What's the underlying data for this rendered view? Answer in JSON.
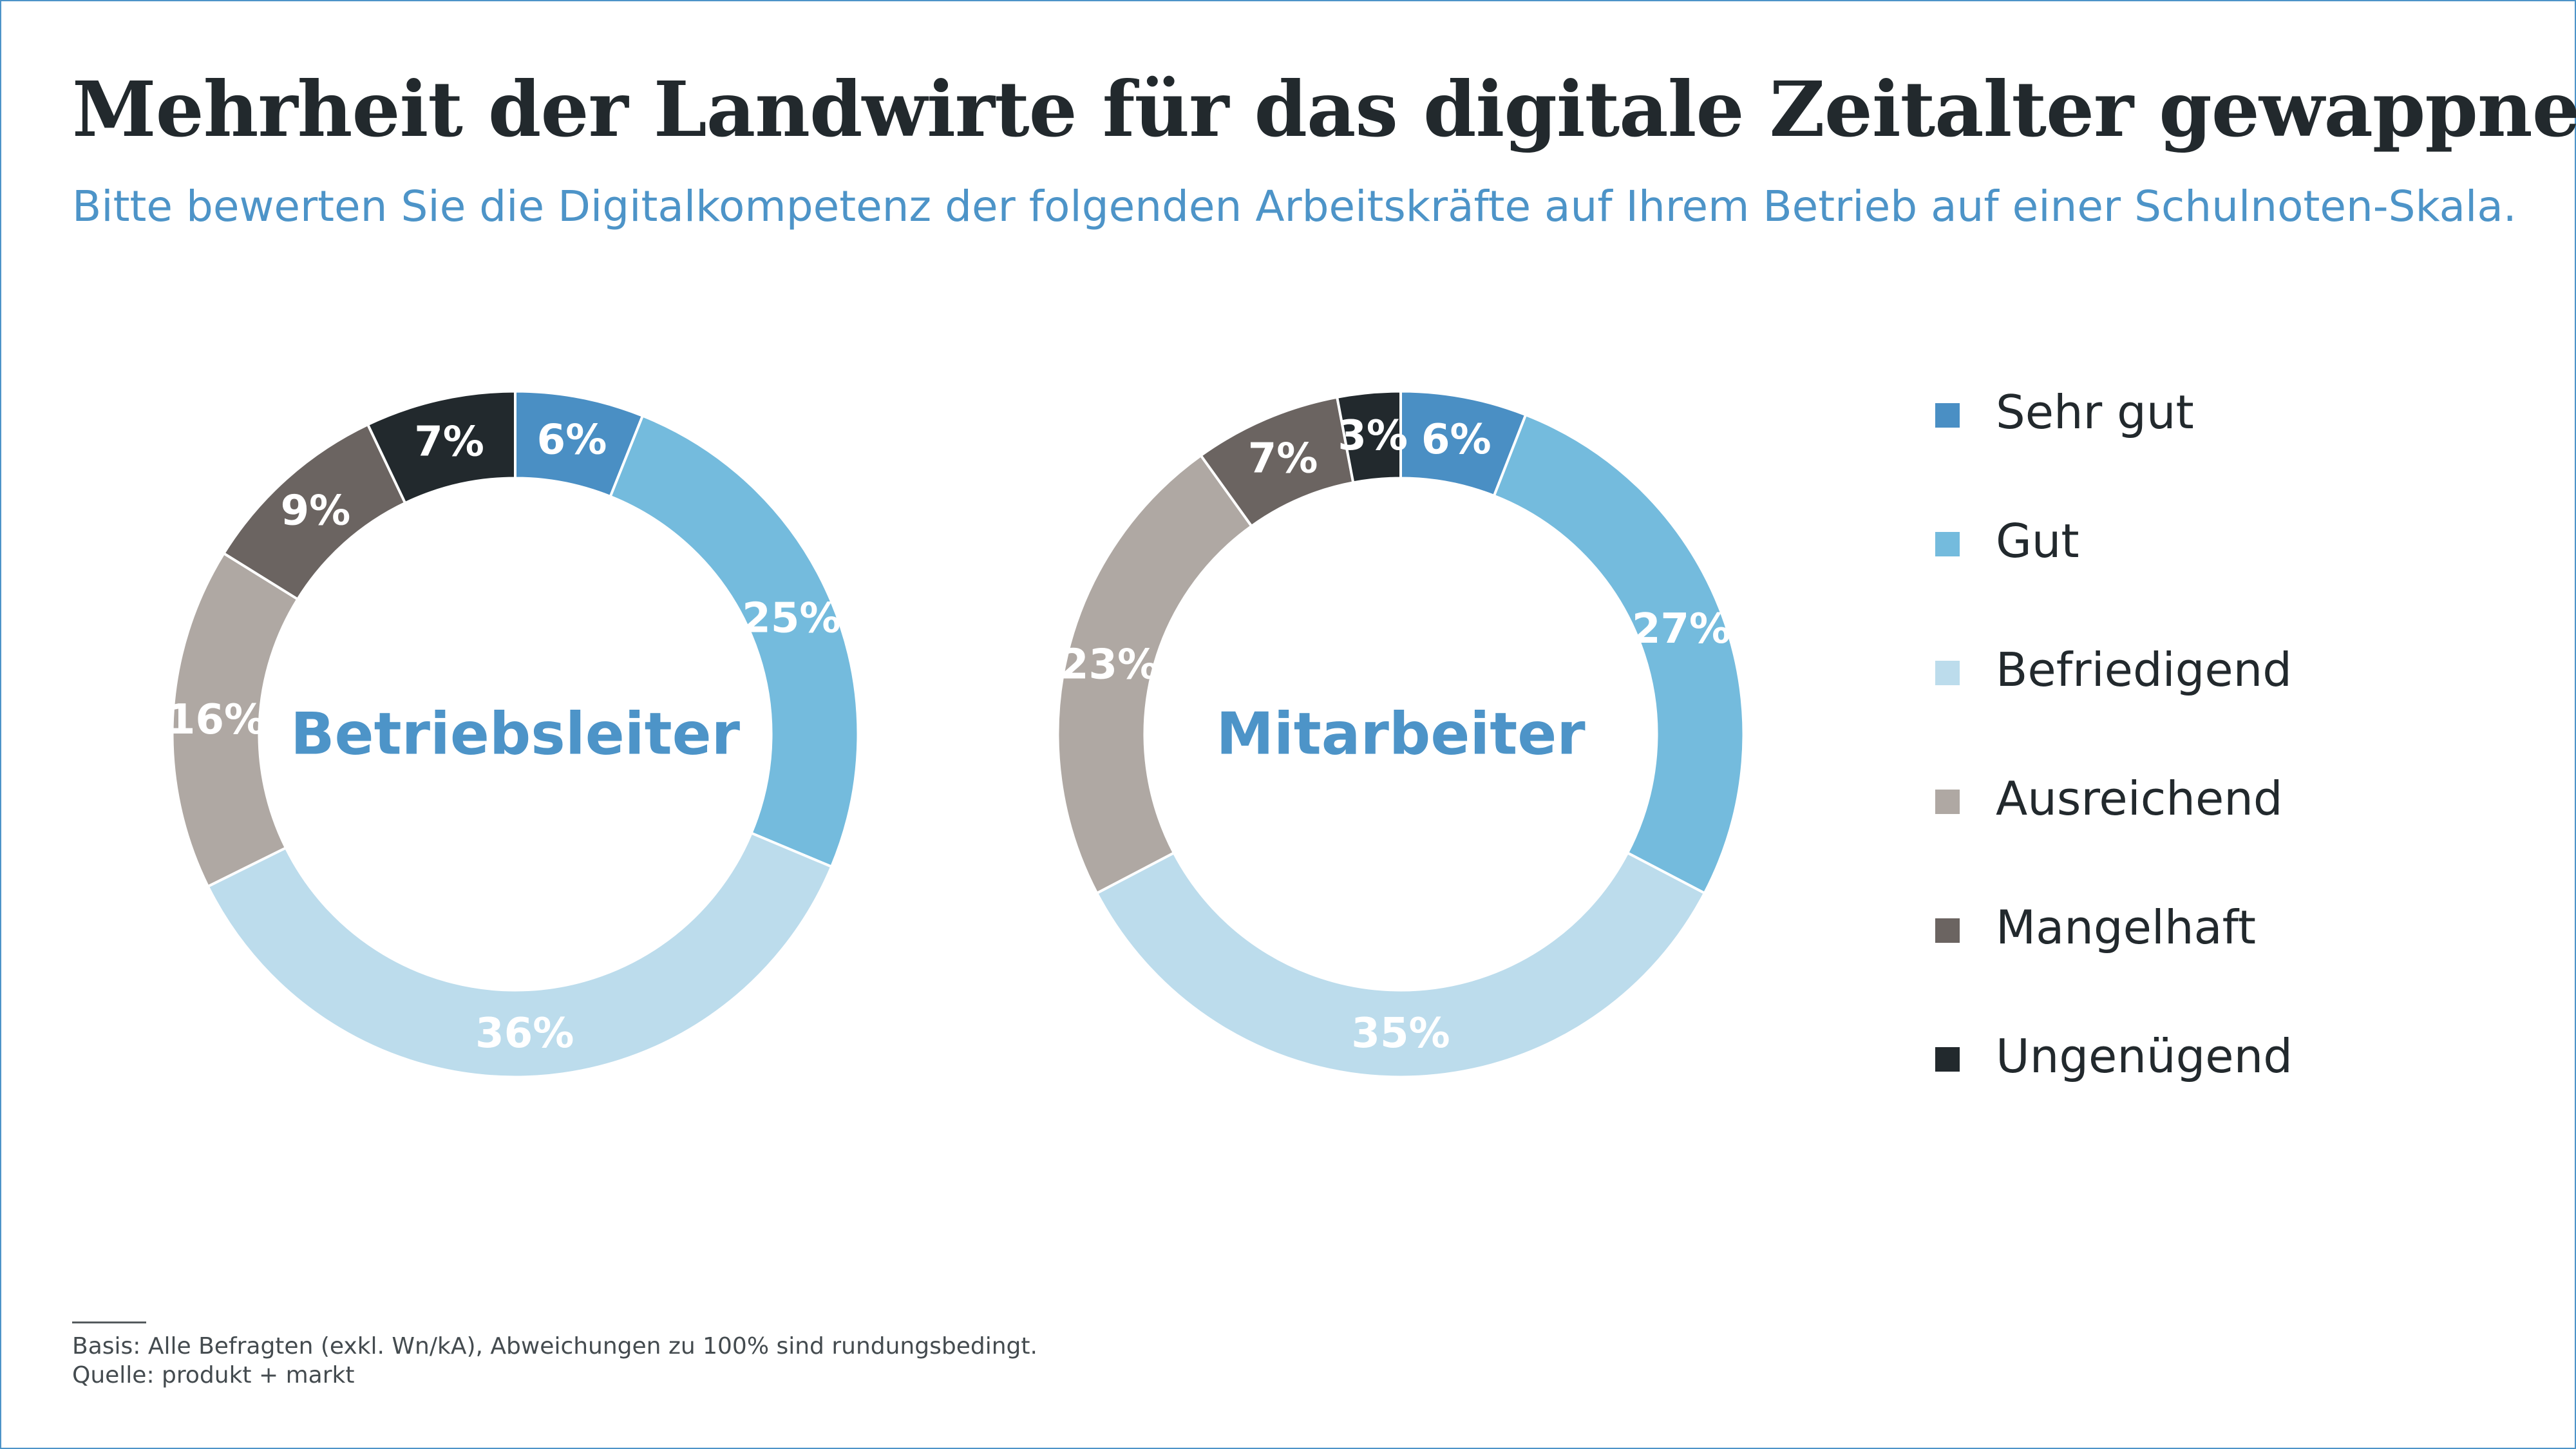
{
  "title": "Mehrheit der Landwirte für das digitale Zeitalter gewappnet",
  "subtitle": "Bitte bewerten Sie die Digitalkompetenz der folgenden Arbeitskräfte auf Ihrem Betrieb auf einer Schulnoten-Skala.",
  "legend": [
    {
      "label": "Sehr gut",
      "color": "#4a8fc4"
    },
    {
      "label": "Gut",
      "color": "#74bbdd"
    },
    {
      "label": "Befriedigend",
      "color": "#bcdcec"
    },
    {
      "label": "Ausreichend",
      "color": "#afa8a3"
    },
    {
      "label": "Mangelhaft",
      "color": "#6b6461"
    },
    {
      "label": "Ungenügend",
      "color": "#22292d"
    }
  ],
  "footer": {
    "basis": "Basis: Alle Befragten (exkl. Wn/kA), Abweichungen zu 100% sind rundungsbedingt.",
    "source": "Quelle: produkt + markt"
  },
  "chart_data": [
    {
      "type": "pie",
      "title": "Betriebsleiter",
      "categories": [
        "Sehr gut",
        "Gut",
        "Befriedigend",
        "Ausreichend",
        "Mangelhaft",
        "Ungenügend"
      ],
      "values": [
        6,
        25,
        36,
        16,
        9,
        7
      ],
      "labels": [
        "6%",
        "25%",
        "36%",
        "16%",
        "9%",
        "7%"
      ],
      "colors": [
        "#4a8fc4",
        "#74bbdd",
        "#bcdcec",
        "#afa8a3",
        "#6b6461",
        "#22292d"
      ]
    },
    {
      "type": "pie",
      "title": "Mitarbeiter",
      "categories": [
        "Sehr gut",
        "Gut",
        "Befriedigend",
        "Ausreichend",
        "Mangelhaft",
        "Ungenügend"
      ],
      "values": [
        6,
        27,
        35,
        23,
        7,
        3
      ],
      "labels": [
        "6%",
        "27%",
        "35%",
        "23%",
        "7%",
        "3%"
      ],
      "colors": [
        "#4a8fc4",
        "#74bbdd",
        "#bcdcec",
        "#afa8a3",
        "#6b6461",
        "#22292d"
      ]
    }
  ]
}
